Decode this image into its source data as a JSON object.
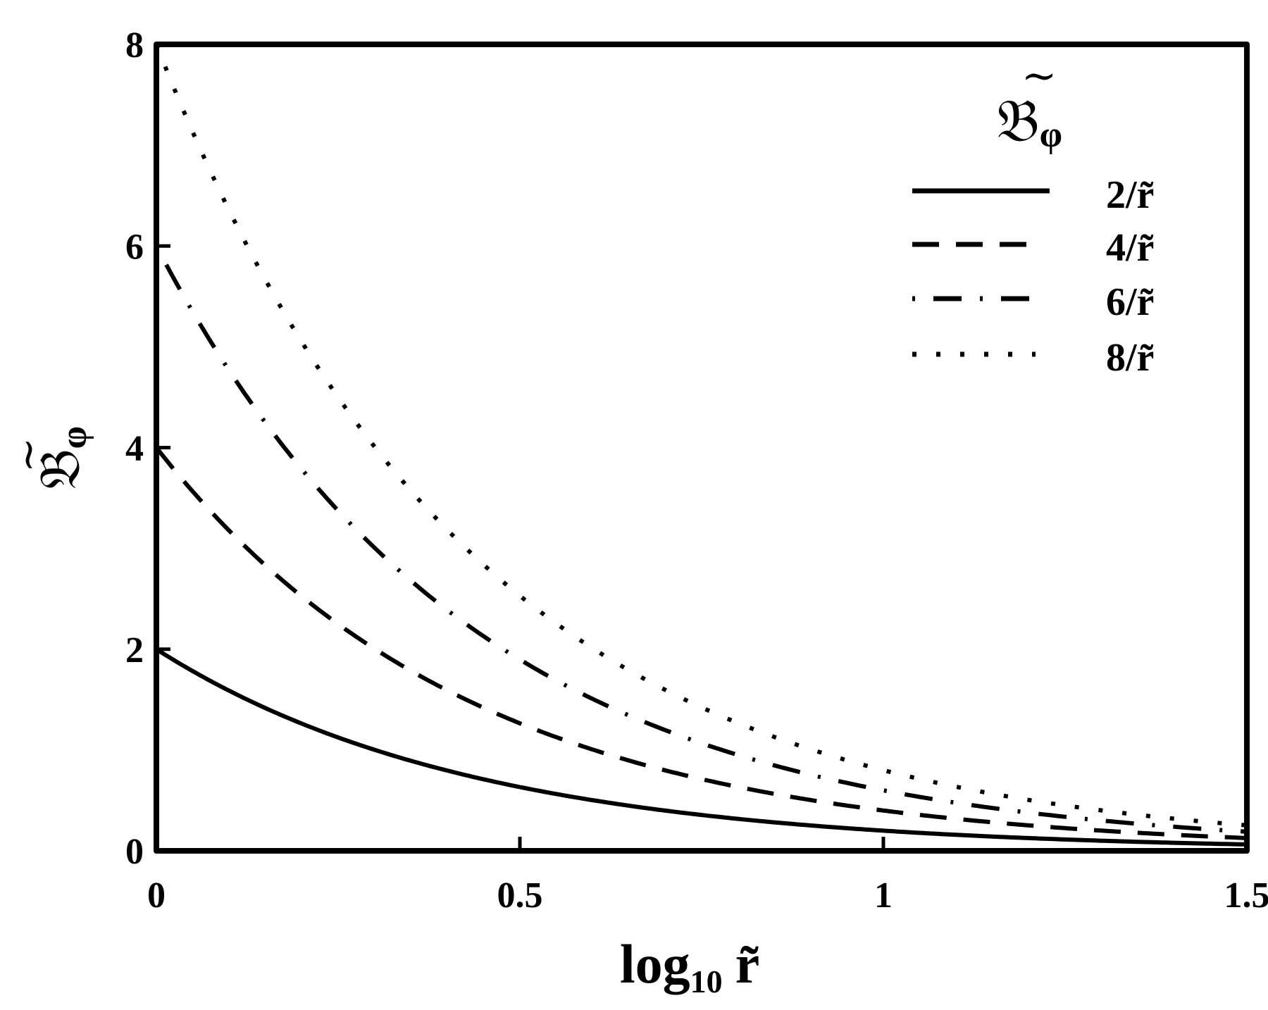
{
  "chart_data": {
    "type": "line",
    "title": "",
    "xlabel": "log10 r̃",
    "xlabel_main": "log",
    "xlabel_sub": "10",
    "xlabel_var": "r̃",
    "ylabel": "𝔅̃φ",
    "ylabel_main": "𝔅",
    "ylabel_sub": "φ",
    "xlim": [
      0,
      1.5
    ],
    "ylim": [
      0,
      8
    ],
    "xticks": [
      0,
      0.5,
      1,
      1.5
    ],
    "xtick_labels": [
      "0",
      "0.5",
      "1",
      "1.5"
    ],
    "yticks": [
      0,
      2,
      4,
      6,
      8
    ],
    "ytick_labels": [
      "0",
      "2",
      "4",
      "6",
      "8"
    ],
    "grid": false,
    "legend_position": "upper right",
    "legend_title": "𝔅̃φ",
    "x": [
      0,
      0.1,
      0.2,
      0.3,
      0.4,
      0.5,
      0.6,
      0.7,
      0.8,
      0.9,
      1.0,
      1.1,
      1.2,
      1.3,
      1.4,
      1.5
    ],
    "series": [
      {
        "name": "2/r̃",
        "style": "solid",
        "values": [
          2.0,
          1.589,
          1.262,
          1.002,
          0.796,
          0.632,
          0.502,
          0.399,
          0.317,
          0.252,
          0.2,
          0.159,
          0.126,
          0.1,
          0.08,
          0.063
        ]
      },
      {
        "name": "4/r̃",
        "style": "dashed",
        "values": [
          4.0,
          3.177,
          2.524,
          2.005,
          1.592,
          1.265,
          1.005,
          0.798,
          0.634,
          0.504,
          0.4,
          0.318,
          0.252,
          0.2,
          0.159,
          0.126
        ]
      },
      {
        "name": "6/r̃",
        "style": "dash-dot",
        "values": [
          6.0,
          4.766,
          3.786,
          3.007,
          2.389,
          1.897,
          1.507,
          1.197,
          0.951,
          0.755,
          0.6,
          0.477,
          0.379,
          0.301,
          0.239,
          0.19
        ]
      },
      {
        "name": "8/r̃",
        "style": "dotted",
        "values": [
          8.0,
          6.355,
          5.048,
          4.009,
          3.185,
          2.53,
          2.009,
          1.596,
          1.268,
          1.007,
          0.8,
          0.636,
          0.505,
          0.401,
          0.318,
          0.253
        ]
      }
    ],
    "formula": "B = k / 10^x, k ∈ {2, 4, 6, 8}"
  },
  "legend": {
    "title_main": "𝔅",
    "title_sub": "φ",
    "items": [
      {
        "label": "2/r̃",
        "style": "solid"
      },
      {
        "label": "4/r̃",
        "style": "dashed"
      },
      {
        "label": "6/r̃",
        "style": "dash-dot"
      },
      {
        "label": "8/r̃",
        "style": "dotted"
      }
    ]
  }
}
